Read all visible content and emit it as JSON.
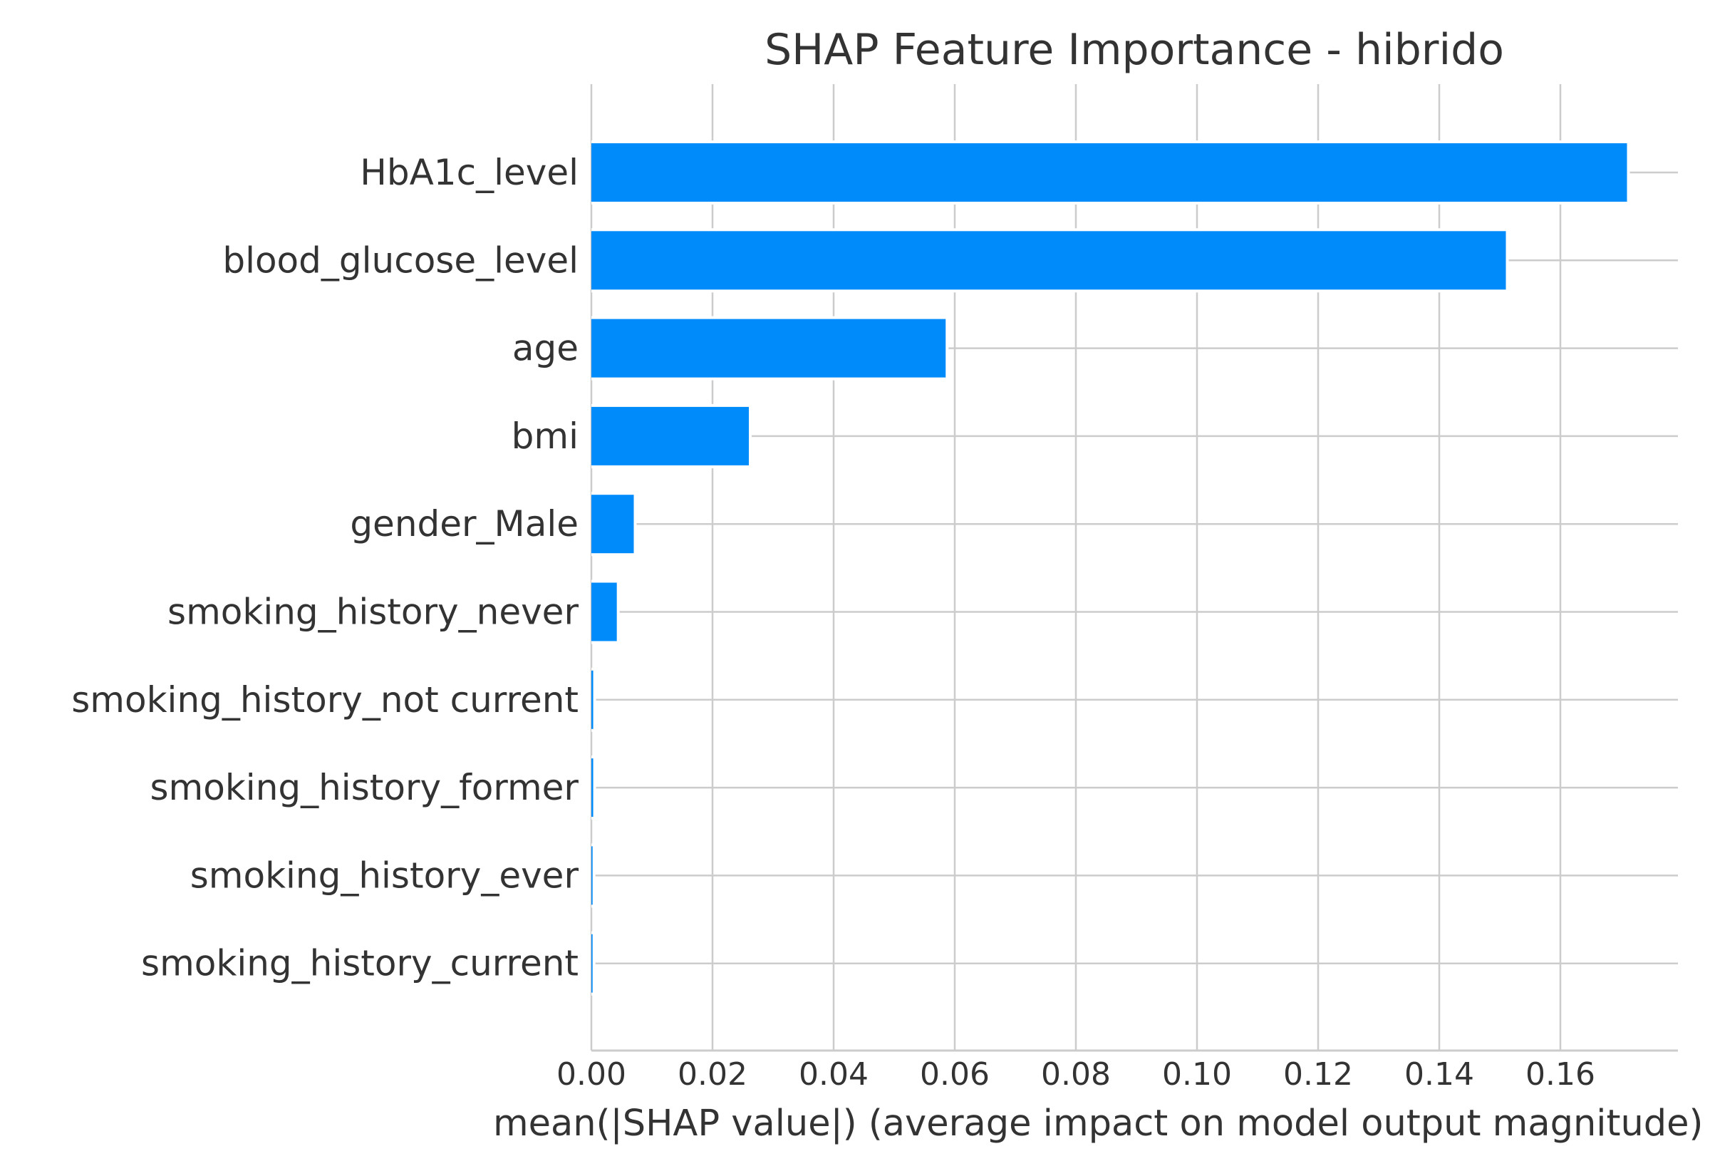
{
  "chart_data": {
    "type": "bar",
    "orientation": "horizontal",
    "title": "SHAP Feature Importance - hibrido",
    "xlabel": "mean(|SHAP value|) (average impact on model output magnitude)",
    "ylabel": "",
    "categories": [
      "HbA1c_level",
      "blood_glucose_level",
      "age",
      "bmi",
      "gender_Male",
      "smoking_history_never",
      "smoking_history_not current",
      "smoking_history_former",
      "smoking_history_ever",
      "smoking_history_current"
    ],
    "values": [
      0.171,
      0.151,
      0.0585,
      0.026,
      0.007,
      0.0042,
      0.0003,
      0.0003,
      0.0002,
      0.0002
    ],
    "xlim": [
      0,
      0.18
    ],
    "xticks": [
      0.0,
      0.02,
      0.04,
      0.06,
      0.08,
      0.1,
      0.12,
      0.14,
      0.16
    ],
    "xtick_labels": [
      "0.00",
      "0.02",
      "0.04",
      "0.06",
      "0.08",
      "0.10",
      "0.12",
      "0.14",
      "0.16"
    ],
    "grid": true,
    "legend": "none",
    "bar_color": "#008bfb",
    "grid_color": "#cccccc",
    "text_color": "#333333"
  }
}
